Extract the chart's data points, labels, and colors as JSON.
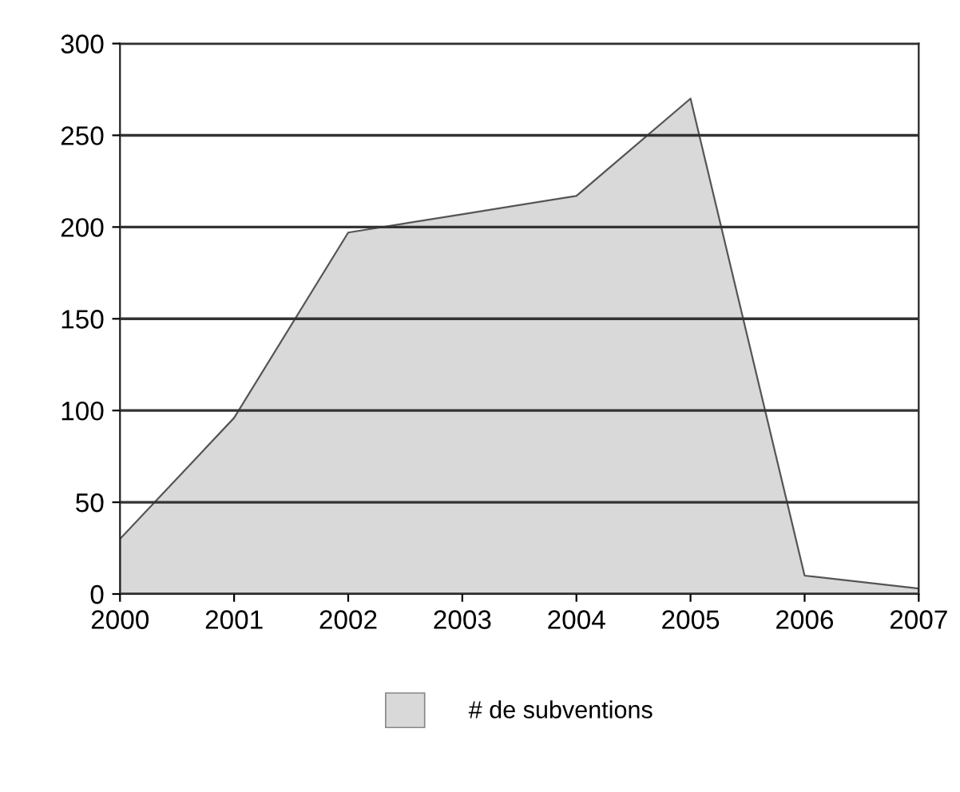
{
  "chart_data": {
    "type": "area",
    "x": [
      2000,
      2001,
      2002,
      2003,
      2004,
      2005,
      2006,
      2007
    ],
    "series": [
      {
        "name": "# de subventions",
        "color": "#d9d9d9",
        "values": [
          30,
          96,
          197,
          207,
          217,
          270,
          10,
          3
        ]
      }
    ],
    "xlim": [
      2000,
      2007
    ],
    "xticks": [
      2000,
      2001,
      2002,
      2003,
      2004,
      2005,
      2006,
      2007
    ],
    "ylim": [
      0,
      300
    ],
    "yticks": [
      0,
      50,
      100,
      150,
      200,
      250,
      300
    ],
    "grid": "y",
    "legend": "bottom"
  }
}
